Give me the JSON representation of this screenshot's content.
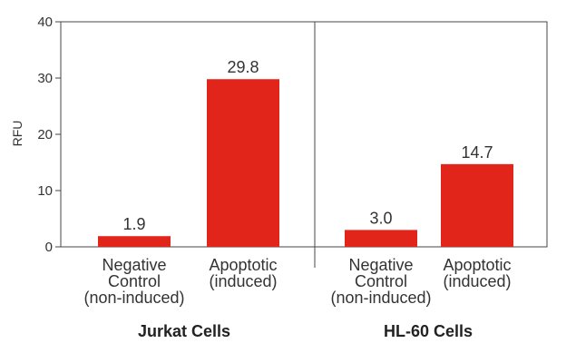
{
  "chart_data": {
    "type": "bar",
    "ylabel": "RFU",
    "ylim": [
      0,
      40
    ],
    "yticks": [
      0,
      10,
      20,
      30,
      40
    ],
    "grid": false,
    "bar_color": "#e2251b",
    "groups": [
      {
        "name": "Jurkat Cells",
        "categories": [
          [
            "Negative",
            "Control",
            "(non-induced)"
          ],
          [
            "Apoptotic",
            "(induced)"
          ]
        ],
        "values": [
          1.9,
          29.8
        ],
        "labels": [
          "1.9",
          "29.8"
        ]
      },
      {
        "name": "HL-60 Cells",
        "categories": [
          [
            "Negative",
            "Control",
            "(non-induced)"
          ],
          [
            "Apoptotic",
            "(induced)"
          ]
        ],
        "values": [
          3.0,
          14.7
        ],
        "labels": [
          "3.0",
          "14.7"
        ]
      }
    ]
  }
}
